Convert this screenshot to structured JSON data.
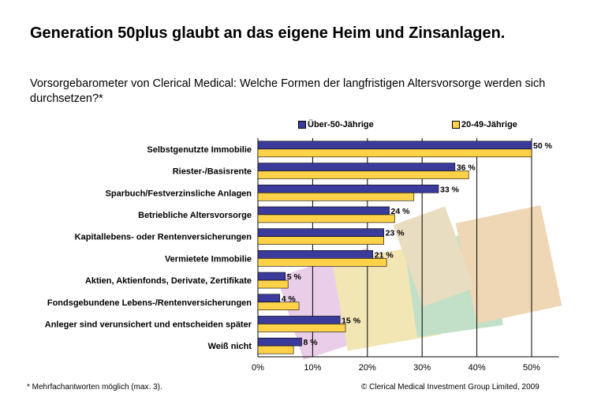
{
  "title": "Generation 50plus glaubt an das eigene Heim und Zinsanlagen.",
  "subtitle": "Vorsorgebarometer von Clerical Medical: Welche Formen der langfristigen Altersvorsorge werden sich durchsetzen?*",
  "footnote": "* Mehrfachantworten möglich (max. 3).",
  "copyright": "© Clerical Medical Investment Group Limited, 2009",
  "colors": {
    "series1": "#3b3b9b",
    "series2": "#ffd24a",
    "grid": "#000000"
  },
  "chart_data": {
    "type": "bar",
    "orientation": "horizontal",
    "categories": [
      "Selbstgenutzte Immobilie",
      "Riester-/Basisrente",
      "Sparbuch/Festverzinsliche Anlagen",
      "Betriebliche Altersvorsorge",
      "Kapitallebens- oder Rentenversicherungen",
      "Vermietete Immobilie",
      "Aktien, Aktienfonds, Derivate, Zertifikate",
      "Fondsgebundene Lebens-/Rentenversicherungen",
      "Anleger sind verunsichert und entscheiden später",
      "Weiß nicht"
    ],
    "series": [
      {
        "name": "Über-50-Jährige",
        "values": [
          50,
          36,
          33,
          24,
          23,
          21,
          5,
          4,
          15,
          8
        ],
        "labels": [
          "50 %",
          "36 %",
          "33 %",
          "24 %",
          "23 %",
          "21 %",
          "5 %",
          "4 %",
          "15 %",
          "8 %"
        ]
      },
      {
        "name": "20-49-Jährige",
        "values": [
          50,
          38.5,
          28.5,
          25,
          23,
          23.5,
          5.5,
          7.5,
          16,
          6.5
        ]
      }
    ],
    "xlim": [
      0,
      55
    ],
    "xticks": [
      "0%",
      "10%",
      "20%",
      "30%",
      "40%",
      "50%"
    ],
    "xtick_values": [
      0,
      10,
      20,
      30,
      40,
      50
    ],
    "legend": "top",
    "grid": true
  }
}
